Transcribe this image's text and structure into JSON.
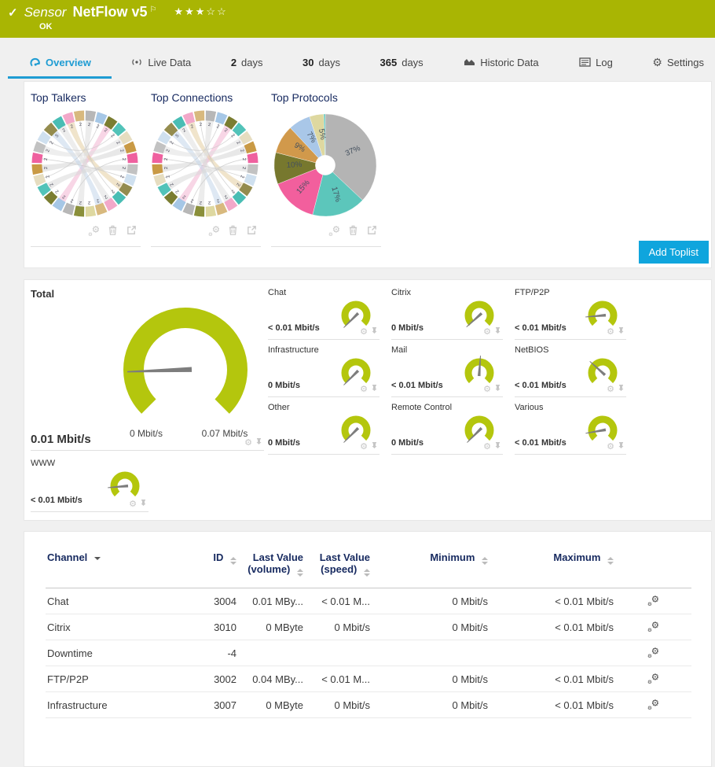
{
  "colors": {
    "header_green": "#a9b503",
    "gauge_green": "#b4c60d",
    "button_blue": "#0fa5dd",
    "tab_blue": "#1e9cd3",
    "navy": "#16295f",
    "needle_gray": "#7d7d7d"
  },
  "header": {
    "status_icon": "✓",
    "title_prefix": "Sensor",
    "title": "NetFlow v5",
    "flag": "⚐",
    "stars": "★★★☆☆",
    "status": "OK"
  },
  "tabs": [
    {
      "label": "Overview",
      "active": true
    },
    {
      "label": "Live Data"
    },
    {
      "num": "2",
      "label": "days"
    },
    {
      "num": "30",
      "label": "days"
    },
    {
      "num": "365",
      "label": "days"
    },
    {
      "label": "Historic Data"
    },
    {
      "label": "Log"
    },
    {
      "label": "Settings"
    }
  ],
  "toplists": {
    "titles": [
      "Top Talkers",
      "Top Connections",
      "Top Protocols"
    ],
    "add_button": "Add Toplist",
    "chord_palette": [
      "#b7b7b7",
      "#a6c7e6",
      "#7a7d31",
      "#52c3b9",
      "#e6ddc0",
      "#c99a45",
      "#ef619f",
      "#c2c2c2",
      "#cfe0ef",
      "#948c4e",
      "#49bdb4",
      "#f2a8c9",
      "#d8b97e",
      "#ded8a0",
      "#8a8f3a"
    ],
    "chord_inner_label": "2"
  },
  "chart_data": {
    "type": "pie",
    "title": "Top Protocols",
    "legend_position": "none",
    "slices": [
      {
        "label": "37%",
        "value": 37,
        "color": "#b4b4b4"
      },
      {
        "label": "17%",
        "value": 17,
        "color": "#5cc6bb"
      },
      {
        "label": "15%",
        "value": 15,
        "color": "#f25f9d"
      },
      {
        "label": "10%",
        "value": 10,
        "color": "#77782e"
      },
      {
        "label": "9%",
        "value": 9,
        "color": "#d1994b"
      },
      {
        "label": "7%",
        "value": 7,
        "color": "#a9c7e8"
      },
      {
        "label": "5%",
        "value": 4.5,
        "color": "#ded8a0"
      },
      {
        "label": "",
        "value": 0.5,
        "color": "#5cc6bb"
      }
    ]
  },
  "gauges": {
    "total": {
      "name": "Total",
      "value": "0.01 Mbit/s",
      "min_label": "0 Mbit/s",
      "max_label": "0.07 Mbit/s",
      "needle": -92
    },
    "channels": [
      {
        "name": "Chat",
        "value": "< 0.01 Mbit/s",
        "needle": -135
      },
      {
        "name": "Citrix",
        "value": "0 Mbit/s",
        "needle": -132
      },
      {
        "name": "FTP/P2P",
        "value": "< 0.01 Mbit/s",
        "needle": -95
      },
      {
        "name": "Infrastructure",
        "value": "0 Mbit/s",
        "needle": -135
      },
      {
        "name": "Mail",
        "value": "< 0.01 Mbit/s",
        "needle": 4
      },
      {
        "name": "NetBIOS",
        "value": "< 0.01 Mbit/s",
        "needle": -48
      },
      {
        "name": "Other",
        "value": "0 Mbit/s",
        "needle": -135
      },
      {
        "name": "Remote Control",
        "value": "0 Mbit/s",
        "needle": -135
      },
      {
        "name": "Various",
        "value": "< 0.01 Mbit/s",
        "needle": -100
      },
      {
        "name": "WWW",
        "value": "< 0.01 Mbit/s",
        "needle": -95
      }
    ]
  },
  "table": {
    "columns": [
      {
        "line1": "Channel",
        "line2": "",
        "sort": "desc"
      },
      {
        "line1": "ID",
        "line2": "",
        "sort": "both"
      },
      {
        "line1": "Last Value",
        "line2": "(volume)",
        "sort": "both"
      },
      {
        "line1": "Last Value",
        "line2": "(speed)",
        "sort": "both"
      },
      {
        "line1": "Minimum",
        "line2": "",
        "sort": "both"
      },
      {
        "line1": "Maximum",
        "line2": "",
        "sort": "both"
      }
    ],
    "rows": [
      {
        "channel": "Chat",
        "id": "3004",
        "last_volume": "0.01 MBy...",
        "last_speed": "< 0.01 M...",
        "minimum": "0 Mbit/s",
        "maximum": "< 0.01 Mbit/s"
      },
      {
        "channel": "Citrix",
        "id": "3010",
        "last_volume": "0 MByte",
        "last_speed": "0 Mbit/s",
        "minimum": "0 Mbit/s",
        "maximum": "< 0.01 Mbit/s"
      },
      {
        "channel": "Downtime",
        "id": "-4",
        "last_volume": "",
        "last_speed": "",
        "minimum": "",
        "maximum": ""
      },
      {
        "channel": "FTP/P2P",
        "id": "3002",
        "last_volume": "0.04 MBy...",
        "last_speed": "< 0.01 M...",
        "minimum": "0 Mbit/s",
        "maximum": "< 0.01 Mbit/s"
      },
      {
        "channel": "Infrastructure",
        "id": "3007",
        "last_volume": "0 MByte",
        "last_speed": "0 Mbit/s",
        "minimum": "0 Mbit/s",
        "maximum": "< 0.01 Mbit/s"
      }
    ]
  }
}
